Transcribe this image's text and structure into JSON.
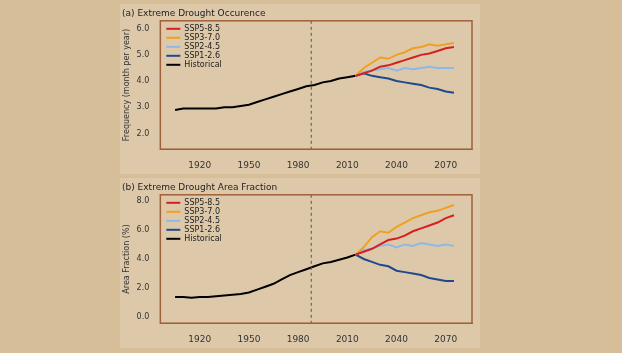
{
  "chart_data": [
    {
      "type": "line",
      "title": "(a) Extreme Drought Occurence",
      "y_label": "Frequency (month per year)",
      "x": [
        1905,
        1910,
        1915,
        1920,
        1925,
        1930,
        1935,
        1940,
        1945,
        1950,
        1955,
        1960,
        1965,
        1970,
        1975,
        1980,
        1985,
        1990,
        1995,
        2000,
        2005,
        2010,
        2015,
        2020,
        2025,
        2030,
        2035,
        2040,
        2045,
        2050,
        2055,
        2060,
        2065,
        2070,
        2075
      ],
      "xlim": [
        1896,
        2086
      ],
      "xticks": [
        1920,
        1950,
        1980,
        2010,
        2040,
        2070
      ],
      "ylim": [
        1.4,
        6.3
      ],
      "yticks": [
        {
          "value": 2,
          "label": "2.0"
        },
        {
          "value": 3,
          "label": "3.0"
        },
        {
          "value": 4,
          "label": "4.0"
        },
        {
          "value": 5,
          "label": "5.0"
        },
        {
          "value": 6,
          "label": "6.0"
        }
      ],
      "grid": false,
      "legend": "upper left",
      "vlines": [
        1988
      ],
      "series": [
        {
          "name": "SSP5-8.5",
          "color": "#d62020",
          "values": [
            null,
            null,
            null,
            null,
            null,
            null,
            null,
            null,
            null,
            null,
            null,
            null,
            null,
            null,
            null,
            null,
            null,
            null,
            null,
            null,
            null,
            null,
            4.2,
            4.3,
            4.4,
            4.55,
            4.6,
            4.7,
            4.8,
            4.9,
            5.0,
            5.05,
            5.15,
            5.25,
            5.3
          ]
        },
        {
          "name": "SSP3-7.0",
          "color": "#f0a020",
          "values": [
            null,
            null,
            null,
            null,
            null,
            null,
            null,
            null,
            null,
            null,
            null,
            null,
            null,
            null,
            null,
            null,
            null,
            null,
            null,
            null,
            null,
            null,
            4.2,
            4.5,
            4.7,
            4.9,
            4.85,
            5.0,
            5.1,
            5.25,
            5.3,
            5.4,
            5.35,
            5.4,
            5.45
          ]
        },
        {
          "name": "SSP2-4.5",
          "color": "#8fb8e8",
          "values": [
            null,
            null,
            null,
            null,
            null,
            null,
            null,
            null,
            null,
            null,
            null,
            null,
            null,
            null,
            null,
            null,
            null,
            null,
            null,
            null,
            null,
            null,
            4.2,
            4.35,
            4.4,
            4.45,
            4.5,
            4.4,
            4.5,
            4.45,
            4.5,
            4.55,
            4.5,
            4.5,
            4.5
          ]
        },
        {
          "name": "SSP1-2.6",
          "color": "#1e4a8c",
          "values": [
            null,
            null,
            null,
            null,
            null,
            null,
            null,
            null,
            null,
            null,
            null,
            null,
            null,
            null,
            null,
            null,
            null,
            null,
            null,
            null,
            null,
            null,
            4.2,
            4.3,
            4.2,
            4.15,
            4.1,
            4.0,
            3.95,
            3.9,
            3.85,
            3.75,
            3.7,
            3.6,
            3.55
          ]
        },
        {
          "name": "Historical",
          "color": "#000000",
          "values": [
            2.9,
            2.95,
            2.95,
            2.95,
            2.95,
            2.95,
            3.0,
            3.0,
            3.05,
            3.1,
            3.2,
            3.3,
            3.4,
            3.5,
            3.6,
            3.7,
            3.8,
            3.85,
            3.95,
            4.0,
            4.1,
            4.15,
            4.2,
            null,
            null,
            null,
            null,
            null,
            null,
            null,
            null,
            null,
            null,
            null,
            null
          ]
        }
      ]
    },
    {
      "type": "line",
      "title": "(b) Extreme Drought Area Fraction",
      "y_label": "Area Fraction (%)",
      "x": [
        1905,
        1910,
        1915,
        1920,
        1925,
        1930,
        1935,
        1940,
        1945,
        1950,
        1955,
        1960,
        1965,
        1970,
        1975,
        1980,
        1985,
        1990,
        1995,
        2000,
        2005,
        2010,
        2015,
        2020,
        2025,
        2030,
        2035,
        2040,
        2045,
        2050,
        2055,
        2060,
        2065,
        2070,
        2075
      ],
      "xlim": [
        1896,
        2086
      ],
      "xticks": [
        1920,
        1950,
        1980,
        2010,
        2040,
        2070
      ],
      "ylim": [
        -0.4,
        8.4
      ],
      "yticks": [
        {
          "value": 0,
          "label": "0.0"
        },
        {
          "value": 2,
          "label": "2.0"
        },
        {
          "value": 4,
          "label": "4.0"
        },
        {
          "value": 6,
          "label": "6.0"
        },
        {
          "value": 8,
          "label": "8.0"
        }
      ],
      "grid": false,
      "legend": "upper left",
      "vlines": [
        1988
      ],
      "series": [
        {
          "name": "SSP5-8.5",
          "color": "#d62020",
          "values": [
            null,
            null,
            null,
            null,
            null,
            null,
            null,
            null,
            null,
            null,
            null,
            null,
            null,
            null,
            null,
            null,
            null,
            null,
            null,
            null,
            null,
            null,
            4.3,
            4.5,
            4.7,
            5.0,
            5.3,
            5.4,
            5.6,
            5.9,
            6.1,
            6.3,
            6.5,
            6.8,
            7.0
          ]
        },
        {
          "name": "SSP3-7.0",
          "color": "#f0a020",
          "values": [
            null,
            null,
            null,
            null,
            null,
            null,
            null,
            null,
            null,
            null,
            null,
            null,
            null,
            null,
            null,
            null,
            null,
            null,
            null,
            null,
            null,
            null,
            4.3,
            4.8,
            5.5,
            5.9,
            5.8,
            6.2,
            6.5,
            6.8,
            7.0,
            7.2,
            7.3,
            7.5,
            7.7
          ]
        },
        {
          "name": "SSP2-4.5",
          "color": "#8fb8e8",
          "values": [
            null,
            null,
            null,
            null,
            null,
            null,
            null,
            null,
            null,
            null,
            null,
            null,
            null,
            null,
            null,
            null,
            null,
            null,
            null,
            null,
            null,
            null,
            4.3,
            4.6,
            4.7,
            4.9,
            5.0,
            4.8,
            5.0,
            4.9,
            5.1,
            5.0,
            4.9,
            5.0,
            4.9
          ]
        },
        {
          "name": "SSP1-2.6",
          "color": "#1e4a8c",
          "values": [
            null,
            null,
            null,
            null,
            null,
            null,
            null,
            null,
            null,
            null,
            null,
            null,
            null,
            null,
            null,
            null,
            null,
            null,
            null,
            null,
            null,
            null,
            4.3,
            4.0,
            3.8,
            3.6,
            3.5,
            3.2,
            3.1,
            3.0,
            2.9,
            2.7,
            2.6,
            2.5,
            2.5
          ]
        },
        {
          "name": "Historical",
          "color": "#000000",
          "values": [
            1.4,
            1.4,
            1.35,
            1.4,
            1.4,
            1.45,
            1.5,
            1.55,
            1.6,
            1.7,
            1.9,
            2.1,
            2.3,
            2.6,
            2.9,
            3.1,
            3.3,
            3.5,
            3.7,
            3.8,
            3.95,
            4.1,
            4.3,
            null,
            null,
            null,
            null,
            null,
            null,
            null,
            null,
            null,
            null,
            null,
            null
          ]
        }
      ]
    }
  ]
}
